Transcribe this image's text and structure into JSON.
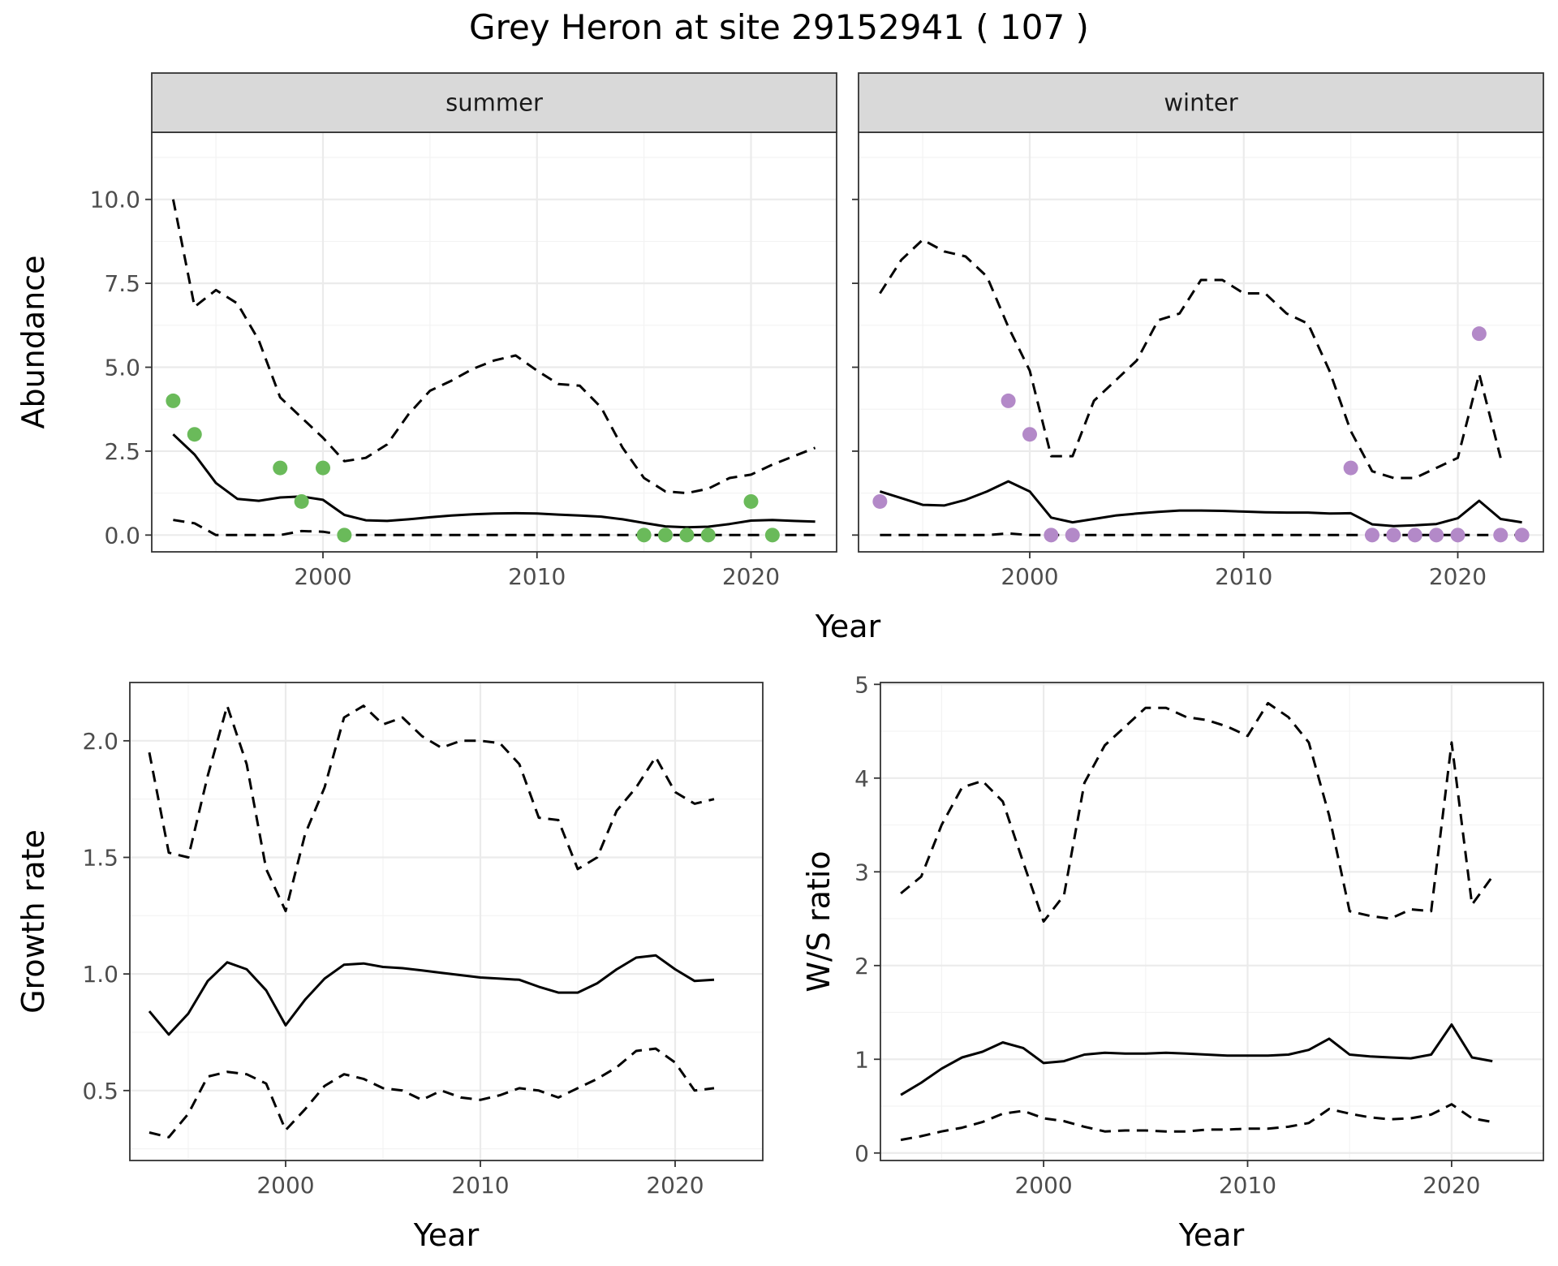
{
  "title": "Grey Heron at site 29152941 ( 107 )",
  "colors": {
    "summer_points": "#6aba5a",
    "winter_points": "#b389c8"
  },
  "chart_data": [
    {
      "type": "line",
      "panel": "summer",
      "strip": "summer",
      "xlabel": "",
      "ylabel": "Abundance",
      "xlim": [
        1992,
        2024
      ],
      "ylim": [
        -0.5,
        12
      ],
      "x_ticks": [
        2000,
        2010,
        2020
      ],
      "y_ticks": [
        0.0,
        2.5,
        5.0,
        7.5,
        10.0
      ],
      "y_tick_labels": [
        "0.0",
        "2.5",
        "5.0",
        "7.5",
        "10.0"
      ],
      "grid": true,
      "years": [
        1993,
        1994,
        1995,
        1996,
        1997,
        1998,
        1999,
        2000,
        2001,
        2002,
        2003,
        2004,
        2005,
        2006,
        2007,
        2008,
        2009,
        2010,
        2011,
        2012,
        2013,
        2014,
        2015,
        2016,
        2017,
        2018,
        2019,
        2020,
        2021,
        2022,
        2023
      ],
      "mean": [
        3.0,
        2.4,
        1.55,
        1.08,
        1.02,
        1.12,
        1.15,
        1.05,
        0.6,
        0.44,
        0.42,
        0.47,
        0.53,
        0.58,
        0.62,
        0.64,
        0.65,
        0.64,
        0.61,
        0.58,
        0.55,
        0.47,
        0.36,
        0.26,
        0.23,
        0.25,
        0.33,
        0.43,
        0.45,
        0.42,
        0.4
      ],
      "upper": [
        10.0,
        6.8,
        7.3,
        6.9,
        5.8,
        4.1,
        3.5,
        2.9,
        2.2,
        2.3,
        2.7,
        3.6,
        4.3,
        4.6,
        4.95,
        5.2,
        5.35,
        4.9,
        4.5,
        4.45,
        3.8,
        2.6,
        1.7,
        1.3,
        1.25,
        1.38,
        1.7,
        1.8,
        2.1,
        2.35,
        2.6
      ],
      "lower": [
        0.45,
        0.35,
        0.0,
        0.0,
        0.0,
        0.0,
        0.12,
        0.1,
        0.0,
        0.0,
        0.0,
        0.0,
        0.0,
        0.0,
        0.0,
        0.0,
        0.0,
        0.0,
        0.0,
        0.0,
        0.0,
        0.0,
        0.0,
        0.0,
        0.0,
        0.0,
        0.0,
        0.0,
        0.0,
        0.0,
        0.0
      ],
      "observed": [
        {
          "x": 1993,
          "y": 4
        },
        {
          "x": 1994,
          "y": 3
        },
        {
          "x": 1998,
          "y": 2
        },
        {
          "x": 1999,
          "y": 1
        },
        {
          "x": 2000,
          "y": 2
        },
        {
          "x": 2001,
          "y": 0
        },
        {
          "x": 2015,
          "y": 0
        },
        {
          "x": 2016,
          "y": 0
        },
        {
          "x": 2017,
          "y": 0
        },
        {
          "x": 2018,
          "y": 0
        },
        {
          "x": 2020,
          "y": 1
        },
        {
          "x": 2021,
          "y": 0
        }
      ]
    },
    {
      "type": "line",
      "panel": "winter",
      "strip": "winter",
      "xlabel": "",
      "ylabel": "",
      "xlim": [
        1992,
        2024
      ],
      "ylim": [
        -0.5,
        12
      ],
      "x_ticks": [
        2000,
        2010,
        2020
      ],
      "y_ticks": [
        0.0,
        2.5,
        5.0,
        7.5,
        10.0
      ],
      "grid": true,
      "years": [
        1993,
        1994,
        1995,
        1996,
        1997,
        1998,
        1999,
        2000,
        2001,
        2002,
        2003,
        2004,
        2005,
        2006,
        2007,
        2008,
        2009,
        2010,
        2011,
        2012,
        2013,
        2014,
        2015,
        2016,
        2017,
        2018,
        2019,
        2020,
        2021,
        2022,
        2023
      ],
      "mean": [
        1.3,
        1.1,
        0.9,
        0.88,
        1.05,
        1.3,
        1.6,
        1.3,
        0.52,
        0.38,
        0.48,
        0.58,
        0.64,
        0.69,
        0.73,
        0.73,
        0.72,
        0.7,
        0.68,
        0.67,
        0.67,
        0.64,
        0.65,
        0.32,
        0.27,
        0.29,
        0.33,
        0.5,
        1.02,
        0.48,
        0.38
      ],
      "upper": [
        7.2,
        8.2,
        8.8,
        8.45,
        8.3,
        7.7,
        6.2,
        4.9,
        2.35,
        2.35,
        4.0,
        4.6,
        5.2,
        6.4,
        6.6,
        7.6,
        7.6,
        7.2,
        7.2,
        6.6,
        6.3,
        4.9,
        3.1,
        1.9,
        1.7,
        1.7,
        2.0,
        2.3,
        4.8,
        2.3,
        null
      ],
      "lower": [
        0.0,
        0.0,
        0.0,
        0.0,
        0.0,
        0.0,
        0.05,
        0.0,
        0.0,
        0.0,
        0.0,
        0.0,
        0.0,
        0.0,
        0.0,
        0.0,
        0.0,
        0.0,
        0.0,
        0.0,
        0.0,
        0.0,
        0.0,
        0.0,
        0.0,
        0.0,
        0.0,
        0.0,
        0.0,
        0.0,
        0.0
      ],
      "observed": [
        {
          "x": 1993,
          "y": 1
        },
        {
          "x": 1999,
          "y": 4
        },
        {
          "x": 2000,
          "y": 3
        },
        {
          "x": 2001,
          "y": 0
        },
        {
          "x": 2002,
          "y": 0
        },
        {
          "x": 2015,
          "y": 2
        },
        {
          "x": 2016,
          "y": 0
        },
        {
          "x": 2017,
          "y": 0
        },
        {
          "x": 2018,
          "y": 0
        },
        {
          "x": 2019,
          "y": 0
        },
        {
          "x": 2020,
          "y": 0
        },
        {
          "x": 2021,
          "y": 6
        },
        {
          "x": 2022,
          "y": 0
        },
        {
          "x": 2023,
          "y": 0
        }
      ]
    },
    {
      "type": "line",
      "panel": "growth",
      "xlabel": "Year",
      "ylabel": "Growth rate",
      "xlim": [
        1992,
        2024.5
      ],
      "ylim": [
        0.2,
        2.25
      ],
      "x_ticks": [
        2000,
        2010,
        2020
      ],
      "y_ticks": [
        0.5,
        1.0,
        1.5,
        2.0
      ],
      "y_tick_labels": [
        "0.5",
        "1.0",
        "1.5",
        "2.0"
      ],
      "grid": true,
      "years": [
        1993,
        1994,
        1995,
        1996,
        1997,
        1998,
        1999,
        2000,
        2001,
        2002,
        2003,
        2004,
        2005,
        2006,
        2007,
        2008,
        2009,
        2010,
        2011,
        2012,
        2013,
        2014,
        2015,
        2016,
        2017,
        2018,
        2019,
        2020,
        2021,
        2022
      ],
      "mean": [
        0.84,
        0.74,
        0.83,
        0.97,
        1.05,
        1.02,
        0.93,
        0.78,
        0.89,
        0.98,
        1.04,
        1.045,
        1.03,
        1.025,
        1.015,
        1.005,
        0.995,
        0.985,
        0.98,
        0.975,
        0.945,
        0.92,
        0.92,
        0.96,
        1.02,
        1.07,
        1.08,
        1.02,
        0.97,
        0.975
      ],
      "upper": [
        1.95,
        1.52,
        1.5,
        1.85,
        2.15,
        1.9,
        1.45,
        1.27,
        1.6,
        1.8,
        2.1,
        2.15,
        2.07,
        2.1,
        2.02,
        1.97,
        2.0,
        2.0,
        1.99,
        1.9,
        1.67,
        1.66,
        1.45,
        1.5,
        1.7,
        1.8,
        1.93,
        1.78,
        1.73,
        1.75
      ],
      "lower": [
        0.32,
        0.3,
        0.4,
        0.56,
        0.58,
        0.57,
        0.53,
        0.33,
        0.42,
        0.52,
        0.57,
        0.55,
        0.51,
        0.5,
        0.46,
        0.5,
        0.47,
        0.46,
        0.48,
        0.51,
        0.5,
        0.47,
        0.51,
        0.55,
        0.6,
        0.67,
        0.68,
        0.62,
        0.5,
        0.51
      ]
    },
    {
      "type": "line",
      "panel": "ratio",
      "xlabel": "Year",
      "ylabel": "W/S ratio",
      "xlim": [
        1992,
        2024.5
      ],
      "ylim": [
        -0.08,
        5.02
      ],
      "x_ticks": [
        2000,
        2010,
        2020
      ],
      "y_ticks": [
        0,
        1,
        2,
        3,
        4,
        5
      ],
      "y_tick_labels": [
        "0",
        "1",
        "2",
        "3",
        "4",
        "5"
      ],
      "grid": true,
      "years": [
        1993,
        1994,
        1995,
        1996,
        1997,
        1998,
        1999,
        2000,
        2001,
        2002,
        2003,
        2004,
        2005,
        2006,
        2007,
        2008,
        2009,
        2010,
        2011,
        2012,
        2013,
        2014,
        2015,
        2016,
        2017,
        2018,
        2019,
        2020,
        2021,
        2022
      ],
      "mean": [
        0.62,
        0.75,
        0.9,
        1.02,
        1.08,
        1.18,
        1.12,
        0.96,
        0.98,
        1.05,
        1.07,
        1.06,
        1.06,
        1.07,
        1.06,
        1.05,
        1.04,
        1.04,
        1.04,
        1.05,
        1.1,
        1.22,
        1.05,
        1.03,
        1.02,
        1.01,
        1.05,
        1.37,
        1.02,
        0.98
      ],
      "upper": [
        2.77,
        2.95,
        3.5,
        3.9,
        3.97,
        3.75,
        3.1,
        2.47,
        2.75,
        3.95,
        4.35,
        4.55,
        4.75,
        4.75,
        4.65,
        4.62,
        4.55,
        4.45,
        4.8,
        4.65,
        4.38,
        3.6,
        2.58,
        2.53,
        2.5,
        2.6,
        2.58,
        4.38,
        2.65,
        2.95
      ],
      "lower": [
        0.14,
        0.18,
        0.23,
        0.27,
        0.33,
        0.42,
        0.45,
        0.37,
        0.34,
        0.28,
        0.23,
        0.24,
        0.24,
        0.23,
        0.23,
        0.25,
        0.25,
        0.26,
        0.26,
        0.28,
        0.32,
        0.47,
        0.42,
        0.38,
        0.36,
        0.37,
        0.41,
        0.52,
        0.37,
        0.33
      ]
    }
  ]
}
